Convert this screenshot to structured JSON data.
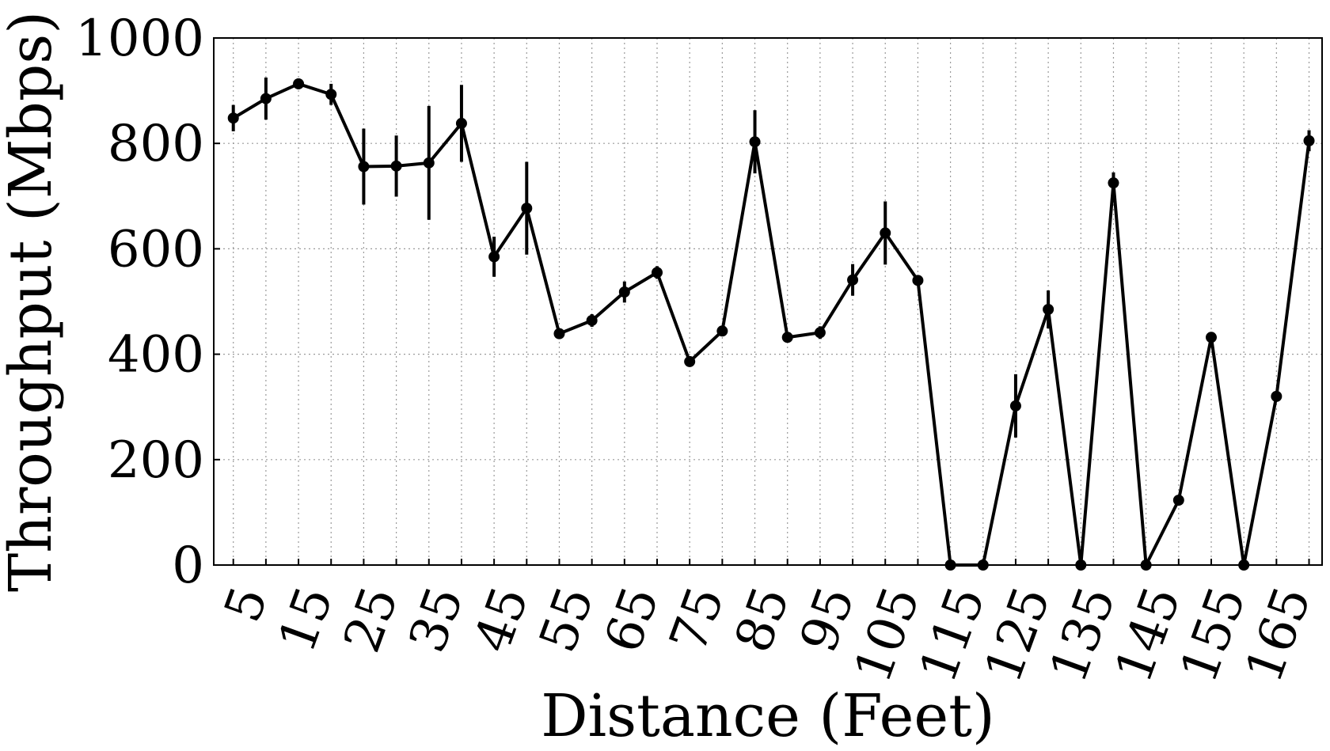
{
  "chart_data": {
    "type": "line",
    "title": "",
    "xlabel": "Distance (Feet)",
    "ylabel": "Throughput (Mbps)",
    "xlim": [
      2,
      172
    ],
    "ylim": [
      0,
      1000
    ],
    "x_ticks": [
      5,
      15,
      25,
      35,
      45,
      55,
      65,
      75,
      85,
      95,
      105,
      115,
      125,
      135,
      145,
      155,
      165
    ],
    "y_ticks": [
      0,
      200,
      400,
      600,
      800,
      1000
    ],
    "x_minor_grid": [
      5,
      10,
      15,
      20,
      25,
      30,
      35,
      40,
      45,
      50,
      55,
      60,
      65,
      70,
      75,
      80,
      85,
      90,
      95,
      100,
      105,
      110,
      115,
      120,
      125,
      130,
      135,
      140,
      145,
      150,
      155,
      160,
      165,
      170
    ],
    "grid": true,
    "series": [
      {
        "color": "#000000",
        "points": [
          {
            "x": 5,
            "y": 848,
            "err": 25
          },
          {
            "x": 10,
            "y": 885,
            "err": 40
          },
          {
            "x": 15,
            "y": 913,
            "err": 10
          },
          {
            "x": 20,
            "y": 893,
            "err": 20
          },
          {
            "x": 25,
            "y": 756,
            "err": 72
          },
          {
            "x": 30,
            "y": 757,
            "err": 58
          },
          {
            "x": 35,
            "y": 763,
            "err": 108
          },
          {
            "x": 40,
            "y": 838,
            "err": 73
          },
          {
            "x": 45,
            "y": 585,
            "err": 38
          },
          {
            "x": 50,
            "y": 677,
            "err": 88
          },
          {
            "x": 55,
            "y": 439,
            "err": 8
          },
          {
            "x": 60,
            "y": 464,
            "err": 12
          },
          {
            "x": 65,
            "y": 518,
            "err": 20
          },
          {
            "x": 70,
            "y": 555,
            "err": 12
          },
          {
            "x": 75,
            "y": 386,
            "err": 0
          },
          {
            "x": 80,
            "y": 444,
            "err": 0
          },
          {
            "x": 85,
            "y": 803,
            "err": 60
          },
          {
            "x": 90,
            "y": 432,
            "err": 0
          },
          {
            "x": 95,
            "y": 441,
            "err": 12
          },
          {
            "x": 100,
            "y": 541,
            "err": 30
          },
          {
            "x": 105,
            "y": 630,
            "err": 60
          },
          {
            "x": 110,
            "y": 540,
            "err": 0
          },
          {
            "x": 115,
            "y": 0,
            "err": 0
          },
          {
            "x": 120,
            "y": 0,
            "err": 0
          },
          {
            "x": 125,
            "y": 302,
            "err": 60
          },
          {
            "x": 130,
            "y": 485,
            "err": 36
          },
          {
            "x": 135,
            "y": 0,
            "err": 0
          },
          {
            "x": 140,
            "y": 725,
            "err": 20
          },
          {
            "x": 145,
            "y": 0,
            "err": 0
          },
          {
            "x": 150,
            "y": 123,
            "err": 0
          },
          {
            "x": 155,
            "y": 432,
            "err": 0
          },
          {
            "x": 160,
            "y": 0,
            "err": 0
          },
          {
            "x": 165,
            "y": 320,
            "err": 0
          },
          {
            "x": 170,
            "y": 805,
            "err": 20
          }
        ]
      }
    ]
  }
}
